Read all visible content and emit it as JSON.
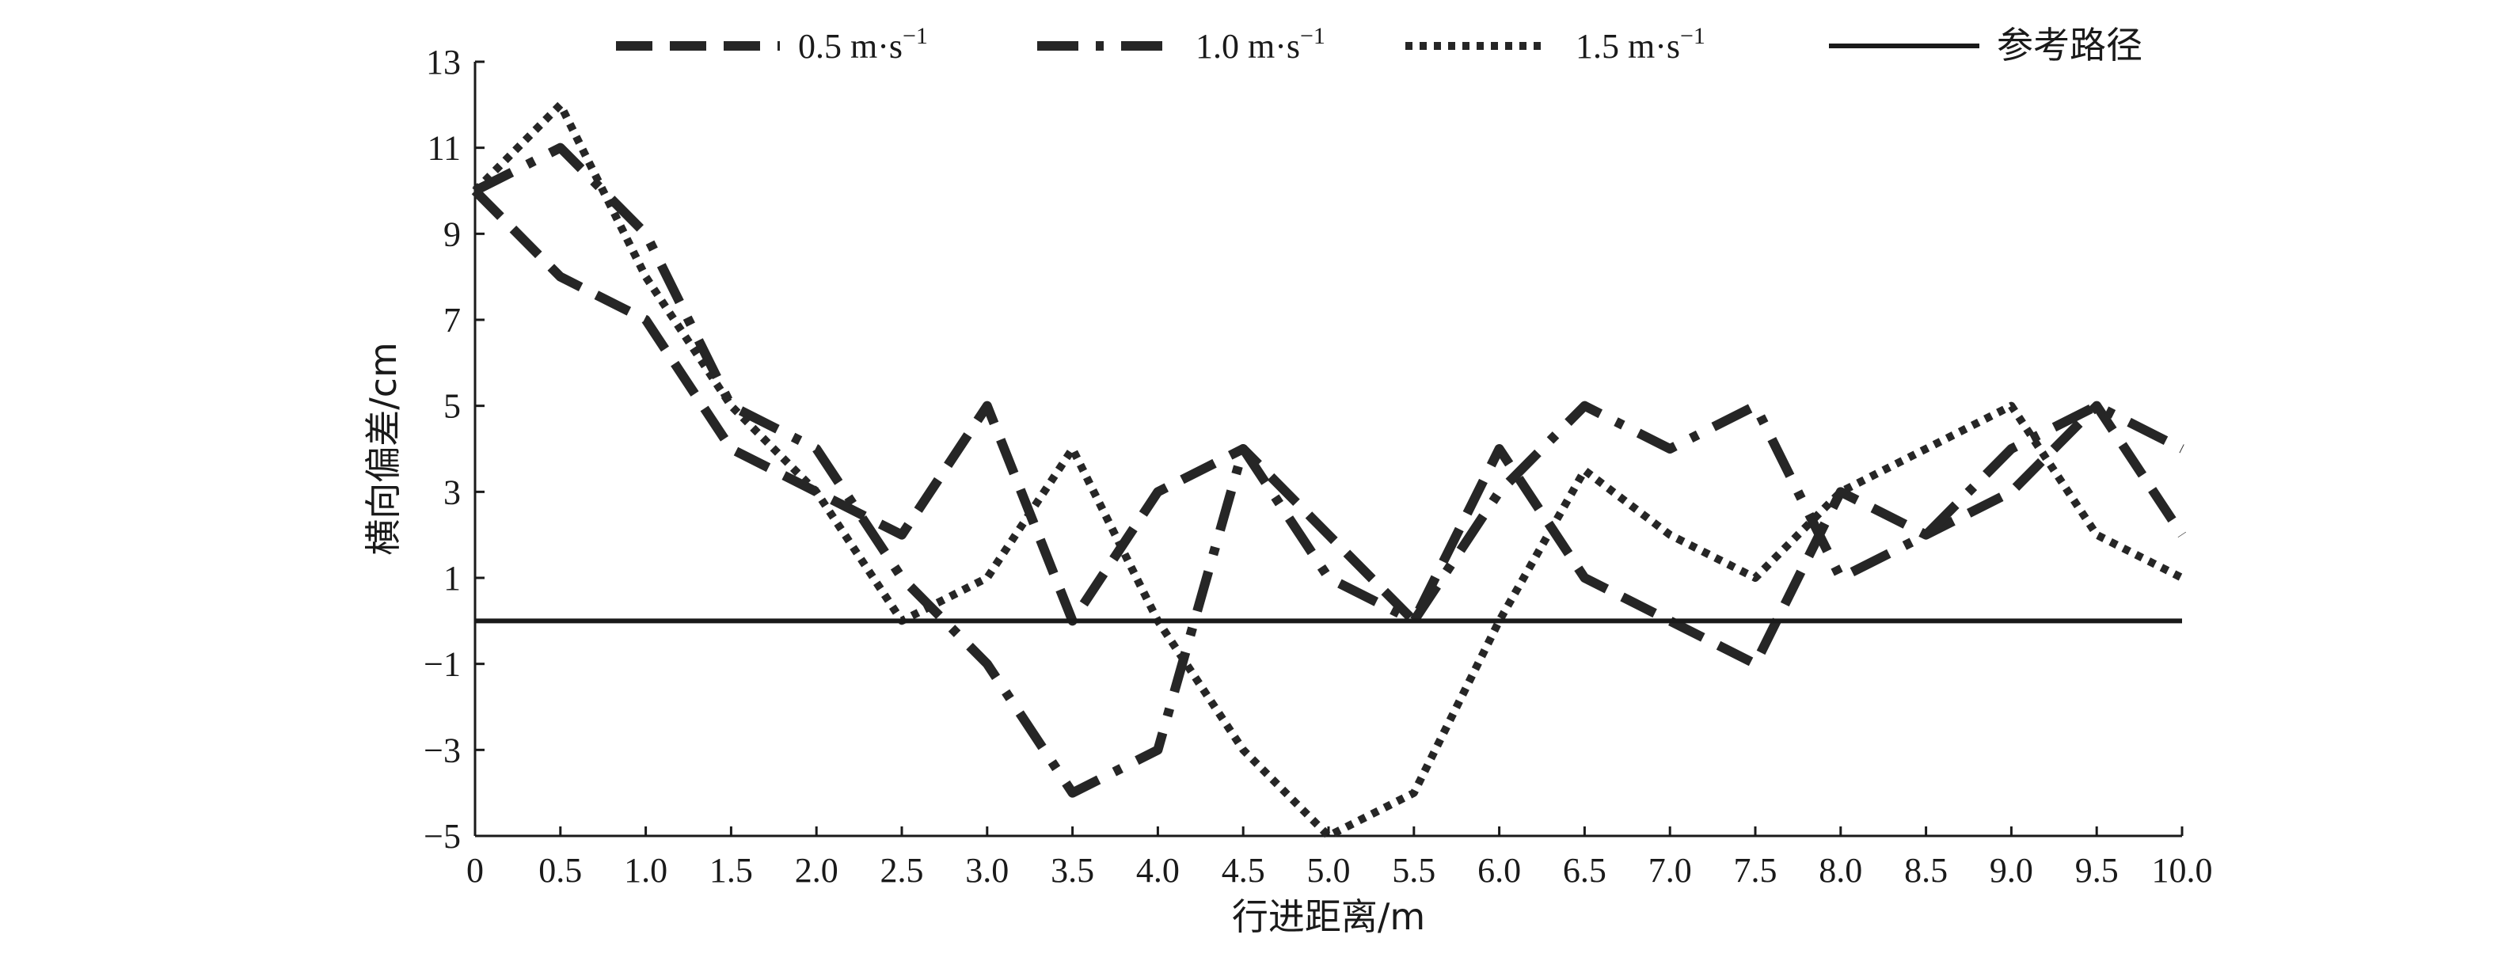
{
  "chart_data": {
    "type": "line",
    "xlabel": "行进距离/m",
    "ylabel": "横向偏差/cm",
    "xlim": [
      0,
      10
    ],
    "ylim": [
      -5,
      13
    ],
    "x_ticks": [
      "0",
      "0.5",
      "1.0",
      "1.5",
      "2.0",
      "2.5",
      "3.0",
      "3.5",
      "4.0",
      "4.5",
      "5.0",
      "5.5",
      "6.0",
      "6.5",
      "7.0",
      "7.5",
      "8.0",
      "8.5",
      "9.0",
      "9.5",
      "10.0"
    ],
    "y_ticks": [
      "13",
      "11",
      "9",
      "7",
      "5",
      "3",
      "1",
      "−1",
      "−3",
      "−5"
    ],
    "legend": {
      "placement": "top",
      "entries": [
        {
          "label": "0.5 m·s",
          "sup": "−1",
          "style": "dashed"
        },
        {
          "label": "1.0 m·s",
          "sup": "−1",
          "style": "dashdot"
        },
        {
          "label": "1.5 m·s",
          "sup": "−1",
          "style": "dotted"
        },
        {
          "label": "参考路径",
          "sup": "",
          "style": "solid"
        }
      ]
    },
    "x": [
      0,
      0.5,
      1.0,
      1.5,
      2.0,
      2.5,
      3.0,
      3.5,
      4.0,
      4.5,
      5.0,
      5.5,
      6.0,
      6.5,
      7.0,
      7.5,
      8.0,
      8.5,
      9.0,
      9.5,
      10.0
    ],
    "series": [
      {
        "name": "0.5 m·s−1",
        "style": "dashed",
        "values": [
          10,
          8,
          7,
          4,
          3,
          2,
          5,
          0,
          3,
          4,
          2,
          0,
          4,
          1,
          0,
          -1,
          3,
          2,
          3,
          5,
          2
        ]
      },
      {
        "name": "1.0 m·s−1",
        "style": "dashdot",
        "values": [
          10,
          11,
          9,
          5,
          4,
          1,
          -1,
          -4,
          -3,
          4,
          1,
          0,
          3,
          5,
          4,
          5,
          1,
          2,
          4,
          5,
          4
        ]
      },
      {
        "name": "1.5 m·s−1",
        "style": "dotted",
        "values": [
          10,
          12,
          8,
          5,
          3,
          0,
          1,
          4,
          0,
          -3,
          -5,
          -4,
          0,
          3.5,
          2,
          1,
          3,
          4,
          5,
          2,
          1
        ]
      },
      {
        "name": "参考路径",
        "style": "solid",
        "values": [
          0,
          0,
          0,
          0,
          0,
          0,
          0,
          0,
          0,
          0,
          0,
          0,
          0,
          0,
          0,
          0,
          0,
          0,
          0,
          0,
          0
        ]
      }
    ]
  }
}
